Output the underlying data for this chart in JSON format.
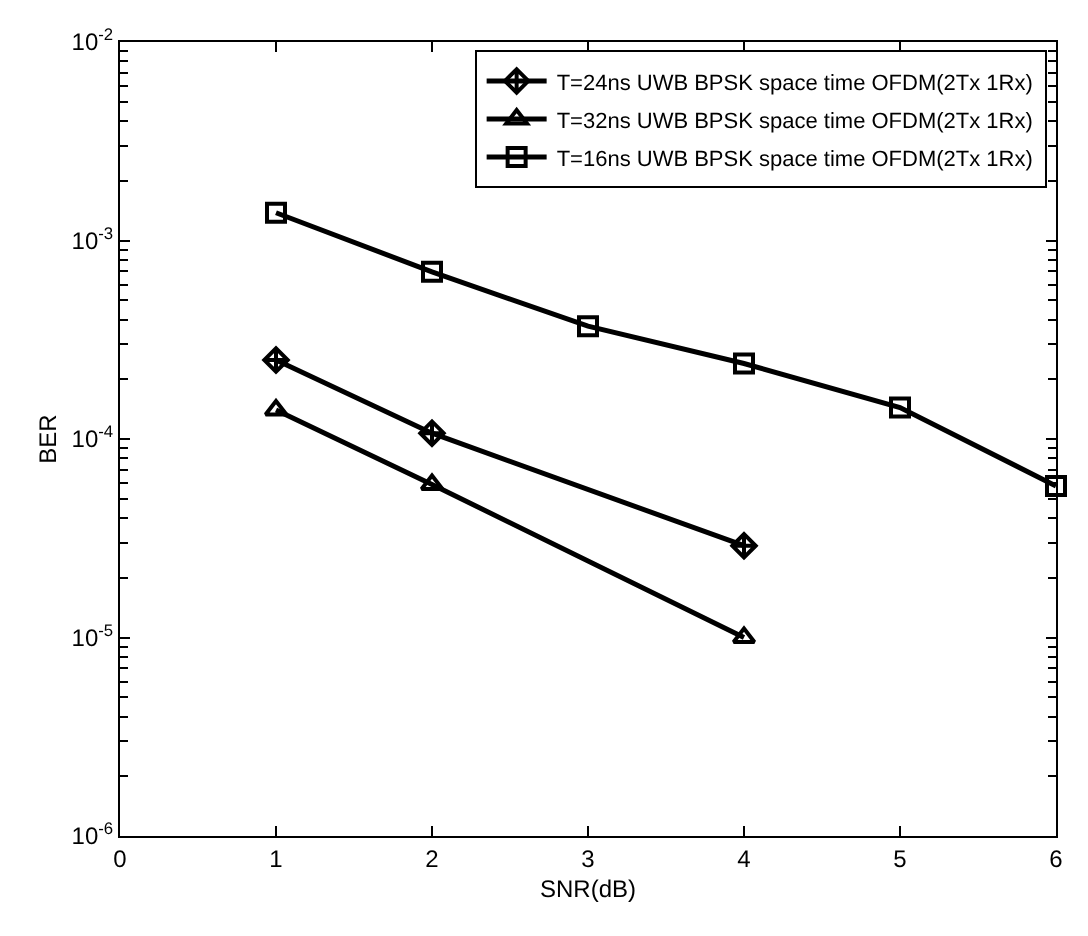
{
  "chart_data": {
    "type": "line",
    "xlabel": "SNR(dB)",
    "ylabel": "BER",
    "log": "y",
    "legend": "top right",
    "xlim": [
      0,
      6
    ],
    "xticks": [
      0,
      1,
      2,
      3,
      4,
      5,
      6
    ],
    "ylim": [
      1e-06,
      0.01
    ],
    "yticks": [
      {
        "value": 1e-06,
        "label": "10$^{-6}$"
      },
      {
        "value": 1e-05,
        "label": "10$^{-5}$"
      },
      {
        "value": 0.0001,
        "label": "10$^{-4}$"
      },
      {
        "value": 0.001,
        "label": "10$^{-3}$"
      },
      {
        "value": 0.01,
        "label": "10$^{-2}$"
      }
    ],
    "series": [
      {
        "name": "T=24ns UWB BPSK space time OFDM(2Tx 1Rx)",
        "color": "#000000",
        "marker": "diamond",
        "x": [
          1,
          2,
          4
        ],
        "values": [
          0.00025,
          0.000107,
          2.9e-05
        ]
      },
      {
        "name": "T=32ns UWB BPSK space time OFDM(2Tx 1Rx)",
        "color": "#000000",
        "marker": "triangle",
        "x": [
          1,
          2,
          4
        ],
        "values": [
          0.00014,
          5.9e-05,
          1e-05
        ]
      },
      {
        "name": "T=16ns UWB BPSK space time OFDM(2Tx 1Rx)",
        "color": "#000000",
        "marker": "square",
        "x": [
          1,
          2,
          3,
          4,
          5,
          6
        ],
        "values": [
          0.00138,
          0.000695,
          0.00037,
          0.00024,
          0.000144,
          5.8e-05
        ]
      }
    ]
  }
}
